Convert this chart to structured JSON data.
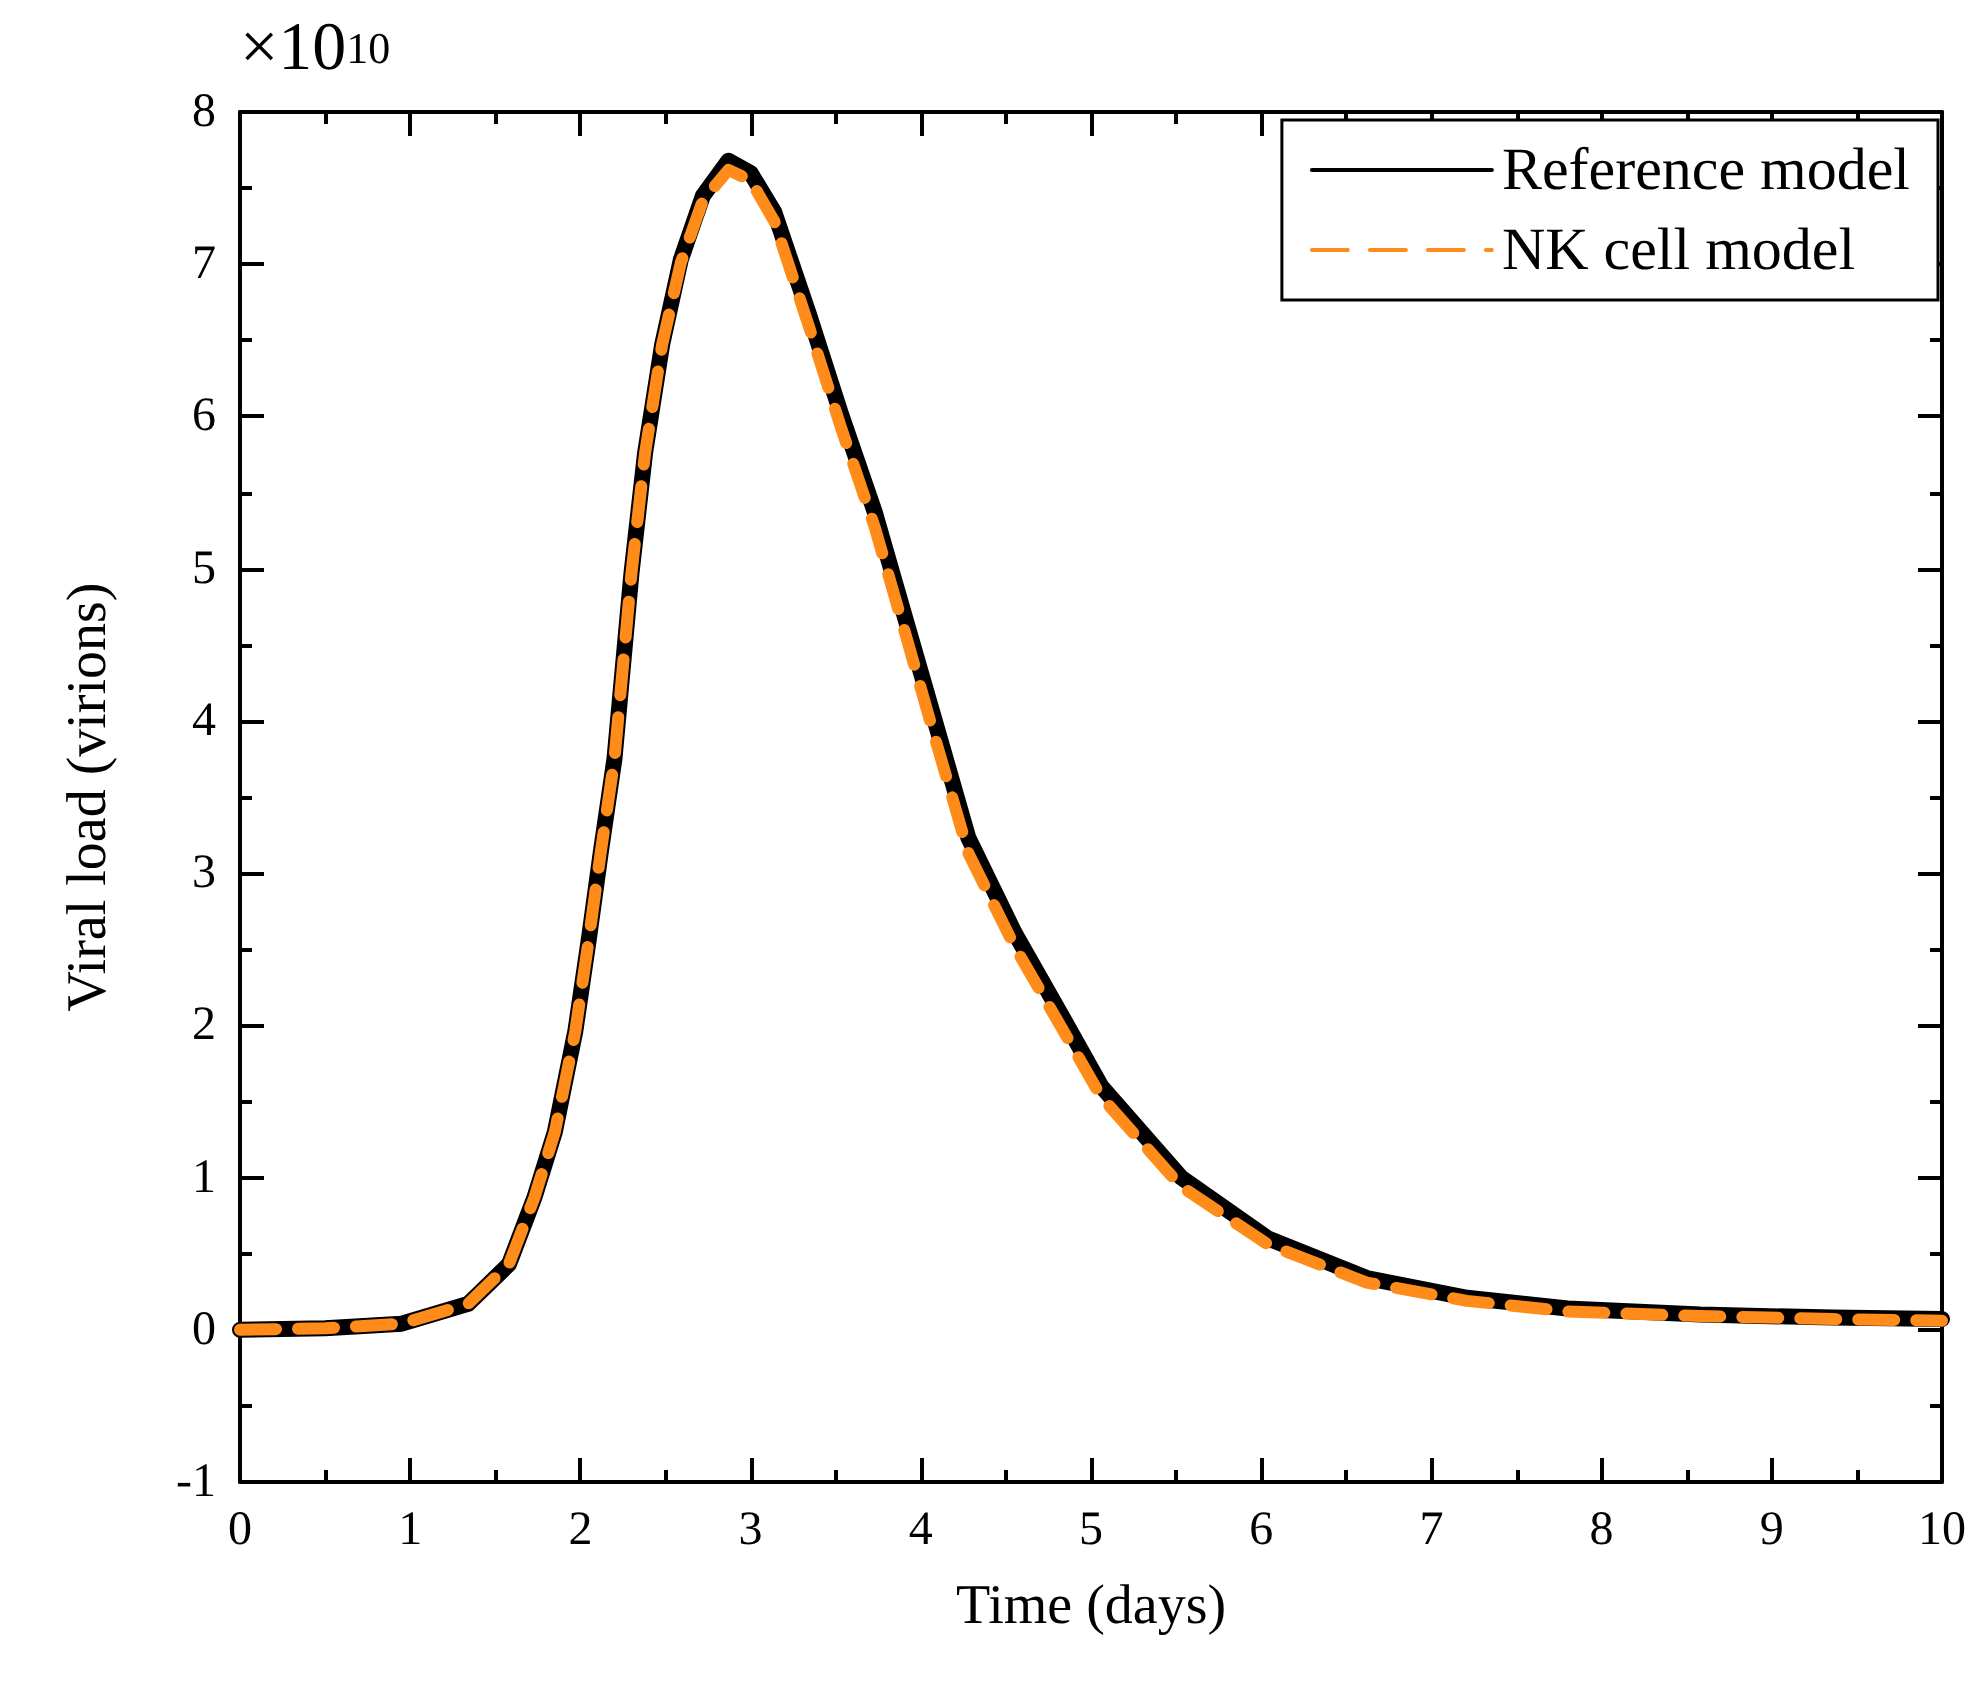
{
  "chart_data": {
    "type": "line",
    "xlabel": "Time (days)",
    "ylabel": "Viral load (virions)",
    "annotations": [
      "×10$^{10}$"
    ],
    "x": [
      0,
      0.5,
      0.95,
      1.34,
      1.58,
      1.73,
      1.85,
      1.97,
      2.05,
      2.12,
      2.2,
      2.3,
      2.38,
      2.48,
      2.59,
      2.72,
      2.87,
      3.0,
      3.14,
      3.34,
      3.53,
      3.73,
      3.92,
      4.08,
      4.28,
      4.55,
      4.86,
      5.06,
      5.53,
      6.04,
      6.62,
      7.21,
      7.8,
      8.58,
      9.36,
      10
    ],
    "series": [
      {
        "name": "Reference model",
        "color": "#000000",
        "line_style": "solid",
        "values": [
          0,
          0.01,
          0.04,
          0.17,
          0.43,
          0.87,
          1.3,
          1.96,
          2.57,
          3.14,
          3.75,
          4.97,
          5.76,
          6.47,
          7.03,
          7.45,
          7.68,
          7.6,
          7.34,
          6.68,
          6.02,
          5.37,
          4.63,
          4.01,
          3.23,
          2.61,
          2.0,
          1.6,
          1.0,
          0.6,
          0.34,
          0.21,
          0.14,
          0.1,
          0.08,
          0.07
        ]
      },
      {
        "name": "NK cell model",
        "color": "#ff8c1a",
        "line_style": "dashed",
        "values": [
          0,
          0.01,
          0.04,
          0.17,
          0.43,
          0.87,
          1.3,
          1.96,
          2.57,
          3.14,
          3.75,
          4.97,
          5.76,
          6.47,
          7.01,
          7.42,
          7.62,
          7.55,
          7.28,
          6.6,
          5.93,
          5.27,
          4.53,
          3.9,
          3.13,
          2.52,
          1.92,
          1.53,
          0.94,
          0.56,
          0.31,
          0.19,
          0.12,
          0.09,
          0.07,
          0.06
        ]
      }
    ],
    "xlim": [
      0,
      10
    ],
    "xticks": [
      0,
      1,
      2,
      3,
      4,
      5,
      6,
      7,
      8,
      9,
      10
    ],
    "ylim": [
      -1,
      8
    ],
    "yticks": [
      -1,
      0,
      1,
      2,
      3,
      4,
      5,
      6,
      7,
      8
    ],
    "grid": false,
    "legend": "top right",
    "marker": "none"
  }
}
